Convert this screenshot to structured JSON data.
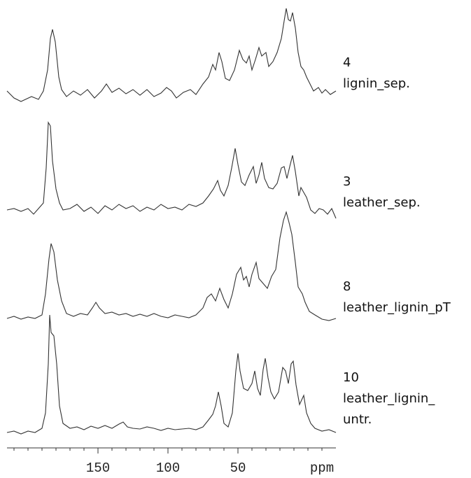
{
  "chart_data": {
    "type": "stacked-spectra",
    "x_label": "ppm",
    "xlim": [
      215,
      -20
    ],
    "xticks": [
      150,
      100,
      50
    ],
    "xminor_ticks": [
      210,
      200,
      190,
      180,
      170,
      160,
      150,
      140,
      130,
      120,
      110,
      100,
      90,
      80,
      70,
      60,
      50,
      40,
      30,
      20,
      10,
      0,
      -10
    ],
    "color": "#333333",
    "series": [
      {
        "sample": "4",
        "name_lines": [
          "lignin_sep."
        ],
        "x": [
          215,
          210,
          205,
          197.5,
          192.5,
          189,
          186,
          184,
          182.5,
          180.5,
          178,
          176,
          172.5,
          167.5,
          162.5,
          157.5,
          152.5,
          147.5,
          144,
          140,
          135,
          130,
          125,
          120,
          115,
          110,
          105,
          101,
          97.5,
          94,
          89,
          84,
          80,
          75,
          71,
          68,
          66,
          63.5,
          61.5,
          59,
          56,
          52.5,
          49,
          46.5,
          44,
          42,
          40,
          37.5,
          35,
          33,
          30,
          28,
          25,
          22,
          19,
          17,
          15.5,
          14,
          12.5,
          11,
          9,
          7,
          5,
          3,
          1,
          -1.5,
          -4,
          -7.5,
          -10,
          -12.5,
          -16,
          -20
        ],
        "values": [
          10,
          0,
          -5,
          2,
          -2,
          10,
          40,
          85,
          98,
          80,
          30,
          12,
          2,
          10,
          4,
          12,
          0,
          10,
          20,
          8,
          14,
          6,
          12,
          4,
          12,
          2,
          7,
          15,
          10,
          0,
          8,
          12,
          5,
          20,
          30,
          48,
          40,
          65,
          52,
          28,
          25,
          40,
          68,
          55,
          50,
          60,
          40,
          55,
          72,
          60,
          65,
          45,
          52,
          65,
          85,
          110,
          128,
          112,
          110,
          122,
          100,
          65,
          45,
          40,
          30,
          20,
          10,
          15,
          7,
          12,
          5,
          10
        ]
      },
      {
        "sample": "3",
        "name_lines": [
          "leather_sep."
        ],
        "x": [
          215,
          210,
          205,
          200,
          196,
          192.5,
          189,
          187,
          185.5,
          184,
          182.5,
          180,
          177.5,
          175,
          170,
          165,
          160,
          155,
          150,
          145,
          140,
          135,
          130,
          125,
          120,
          115,
          110,
          105,
          100,
          95,
          90,
          85,
          80,
          75,
          71,
          67.5,
          64.5,
          62.5,
          60,
          57,
          54.5,
          52,
          50,
          47.5,
          45,
          42,
          39,
          37,
          35,
          33,
          31,
          28,
          25,
          22,
          19,
          17,
          15,
          13,
          11,
          9,
          6.5,
          5,
          3,
          1,
          -2,
          -5,
          -8,
          -11,
          -14,
          -17,
          -20
        ],
        "values": [
          0,
          2,
          -2,
          2,
          -6,
          2,
          10,
          60,
          125,
          120,
          70,
          30,
          10,
          0,
          2,
          8,
          -2,
          4,
          -5,
          6,
          0,
          8,
          2,
          6,
          -2,
          4,
          0,
          8,
          2,
          4,
          0,
          8,
          5,
          10,
          20,
          30,
          42,
          28,
          20,
          35,
          60,
          88,
          65,
          40,
          35,
          50,
          62,
          38,
          50,
          68,
          45,
          32,
          30,
          38,
          60,
          62,
          45,
          62,
          78,
          55,
          20,
          32,
          25,
          18,
          0,
          -5,
          2,
          0,
          -6,
          2,
          -12
        ]
      },
      {
        "sample": "8",
        "name_lines": [
          "leather_lignin_pT"
        ],
        "x": [
          215,
          210,
          205,
          200,
          195,
          190,
          187.5,
          185,
          183.5,
          181.5,
          179,
          176,
          172.5,
          167.5,
          162.5,
          157.5,
          154,
          151.5,
          149,
          145,
          140,
          135,
          130,
          125,
          120,
          115,
          110,
          105,
          100,
          95,
          90,
          85,
          80,
          75,
          72,
          69,
          66,
          63,
          60,
          57,
          54,
          51,
          48,
          46,
          44,
          42,
          40,
          37,
          35,
          32,
          29,
          26,
          23,
          20,
          17.5,
          15.5,
          13.5,
          11.5,
          9,
          7,
          4,
          2,
          -1,
          -5,
          -10,
          -15,
          -20
        ],
        "values": [
          0,
          3,
          -1,
          2,
          0,
          5,
          35,
          85,
          107,
          95,
          55,
          25,
          7,
          3,
          7,
          5,
          15,
          23,
          15,
          7,
          9,
          5,
          7,
          3,
          6,
          3,
          7,
          3,
          1,
          5,
          3,
          1,
          5,
          15,
          30,
          35,
          25,
          43,
          27,
          15,
          35,
          63,
          73,
          55,
          60,
          45,
          63,
          80,
          57,
          50,
          43,
          60,
          70,
          115,
          140,
          152,
          137,
          120,
          80,
          45,
          35,
          23,
          10,
          5,
          -1,
          -3,
          0
        ]
      },
      {
        "sample": "10",
        "name_lines": [
          "leather_lignin_",
          "untr."
        ],
        "x": [
          215,
          210,
          205,
          200,
          195,
          190,
          187.5,
          185.5,
          184.5,
          183.5,
          181.5,
          179.5,
          177.5,
          175,
          170,
          165,
          160,
          155,
          150,
          145,
          140,
          135,
          132,
          129,
          125,
          120,
          115,
          110,
          105,
          100,
          95,
          90,
          85,
          80,
          75,
          71,
          68,
          66,
          64,
          62,
          60,
          57,
          54,
          51.5,
          50,
          48.5,
          46,
          43,
          40,
          38,
          36,
          34,
          32,
          30.5,
          28.5,
          26.5,
          24,
          21,
          18,
          16,
          14,
          12,
          10.5,
          8.5,
          6,
          3,
          1,
          -2,
          -5,
          -10,
          -15,
          -20
        ],
        "values": [
          -3,
          -1,
          -5,
          -1,
          -3,
          3,
          25,
          95,
          165,
          140,
          135,
          95,
          35,
          10,
          3,
          5,
          1,
          6,
          3,
          7,
          3,
          9,
          12,
          5,
          3,
          2,
          5,
          3,
          0,
          3,
          1,
          2,
          3,
          1,
          5,
          15,
          23,
          35,
          55,
          35,
          10,
          5,
          25,
          85,
          110,
          85,
          60,
          57,
          67,
          85,
          60,
          50,
          87,
          103,
          75,
          55,
          45,
          55,
          90,
          85,
          67,
          95,
          99,
          65,
          37,
          50,
          25,
          10,
          3,
          -1,
          1,
          -3
        ]
      }
    ]
  }
}
